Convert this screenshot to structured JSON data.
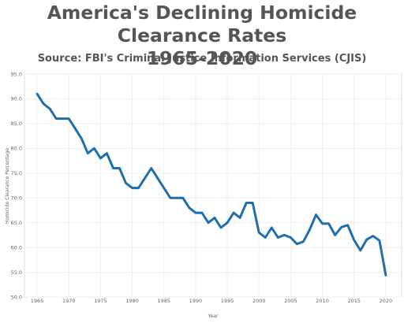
{
  "chart_data": {
    "type": "line",
    "title_line1": "America's Declining Homicide Clearance Rates",
    "title_line2": "1965-2020",
    "subtitle": "Source: FBI's Criminal Justice Information Services (CJIS)",
    "xlabel": "Year",
    "ylabel": "Homicide Clearance Percentage",
    "xlim": [
      1963,
      2022.5
    ],
    "ylim": [
      50,
      95
    ],
    "x_ticks": [
      1965,
      1970,
      1975,
      1980,
      1985,
      1990,
      1995,
      2000,
      2005,
      2010,
      2015,
      2020
    ],
    "y_ticks": [
      "50.0",
      "55.0",
      "60.0",
      "65.0",
      "70.0",
      "75.0",
      "80.0",
      "85.0",
      "90.0",
      "95.0"
    ],
    "grid": true,
    "line_color": "#1f6fad",
    "series": [
      {
        "x": [
          1965,
          1966,
          1967,
          1968,
          1969,
          1970,
          1971,
          1972,
          1973,
          1974,
          1975,
          1976,
          1977,
          1978,
          1979,
          1980,
          1981,
          1982,
          1983,
          1984,
          1985,
          1986,
          1987,
          1988,
          1989,
          1990,
          1991,
          1992,
          1993,
          1994,
          1995,
          1996,
          1997,
          1998,
          1999,
          2000,
          2001,
          2002,
          2003,
          2004,
          2005,
          2006,
          2007,
          2008,
          2009,
          2010,
          2011,
          2012,
          2013,
          2014,
          2015,
          2016,
          2017,
          2018,
          2019,
          2020
        ],
        "values": [
          91,
          89,
          88,
          86,
          86,
          86,
          84,
          82,
          79,
          80,
          78,
          79,
          76,
          76,
          73,
          72,
          72,
          74,
          76,
          74,
          72,
          70,
          70,
          70,
          68,
          67,
          67,
          65,
          66,
          64,
          65,
          67,
          66,
          69,
          69,
          63,
          62,
          64,
          62,
          62.5,
          62,
          60.7,
          61.2,
          63.6,
          66.6,
          64.8,
          64.8,
          62.5,
          64.1,
          64.5,
          61.5,
          59.4,
          61.6,
          62.3,
          61.4,
          54.4
        ]
      }
    ]
  }
}
